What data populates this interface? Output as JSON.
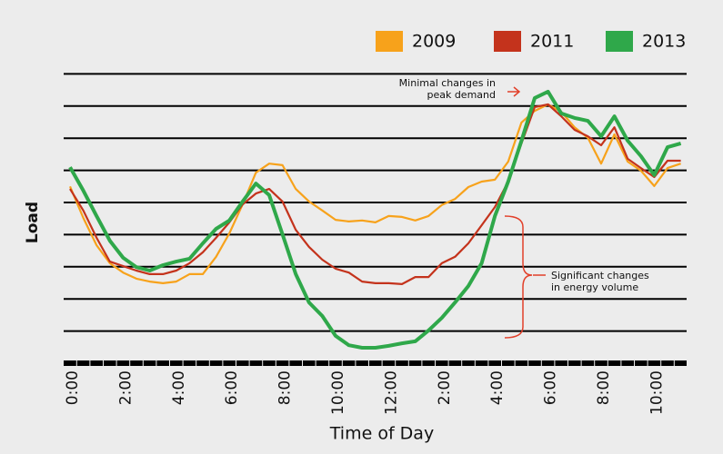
{
  "chart_data": {
    "type": "line",
    "x_label": "Time of Day",
    "y_label": "Load",
    "categories": [
      "0:00",
      null,
      null,
      null,
      "2:00",
      null,
      null,
      null,
      "4:00",
      null,
      null,
      null,
      "6:00",
      null,
      null,
      null,
      "8:00",
      null,
      null,
      null,
      "10:00",
      null,
      null,
      null,
      "12:00",
      null,
      null,
      null,
      "2:00",
      null,
      null,
      null,
      "4:00",
      null,
      null,
      null,
      "6:00",
      null,
      null,
      null,
      "8:00",
      null,
      null,
      null,
      "10:00",
      null,
      null
    ],
    "series": [
      {
        "name": "2009",
        "color": "#f7a21b",
        "width": 2.2,
        "values": [
          5.5,
          4.52,
          3.67,
          3.11,
          2.82,
          2.63,
          2.54,
          2.49,
          2.54,
          2.77,
          2.77,
          3.31,
          4.04,
          4.94,
          5.93,
          6.21,
          6.16,
          5.42,
          5.03,
          4.75,
          4.46,
          4.41,
          4.44,
          4.38,
          4.58,
          4.55,
          4.44,
          4.58,
          4.92,
          5.11,
          5.48,
          5.65,
          5.71,
          6.27,
          7.49,
          7.85,
          8.05,
          7.82,
          7.34,
          7.01,
          6.21,
          7.12,
          6.27,
          5.99,
          5.51,
          6.07,
          6.21
        ]
      },
      {
        "name": "2011",
        "color": "#c4331c",
        "width": 2.2,
        "values": [
          5.42,
          4.75,
          3.9,
          3.16,
          3.02,
          2.88,
          2.77,
          2.77,
          2.88,
          3.11,
          3.45,
          3.9,
          4.38,
          4.94,
          5.28,
          5.42,
          5.03,
          4.15,
          3.62,
          3.22,
          2.94,
          2.82,
          2.54,
          2.49,
          2.49,
          2.46,
          2.68,
          2.68,
          3.11,
          3.31,
          3.73,
          4.29,
          4.86,
          5.65,
          6.84,
          7.97,
          8.05,
          7.68,
          7.26,
          7.06,
          6.78,
          7.34,
          6.36,
          6.07,
          5.79,
          6.3,
          6.3
        ]
      },
      {
        "name": "2013",
        "color": "#2fa84a",
        "width": 4,
        "values": [
          6.1,
          5.37,
          4.58,
          3.81,
          3.28,
          2.99,
          2.88,
          3.05,
          3.16,
          3.25,
          3.73,
          4.18,
          4.44,
          5.03,
          5.59,
          5.23,
          4.01,
          2.77,
          1.89,
          1.47,
          0.85,
          0.56,
          0.48,
          0.48,
          0.54,
          0.62,
          0.68,
          1.02,
          1.41,
          1.89,
          2.4,
          3.11,
          4.58,
          5.65,
          6.92,
          8.25,
          8.45,
          7.77,
          7.63,
          7.54,
          7.06,
          7.68,
          6.92,
          6.44,
          5.85,
          6.72,
          6.84
        ]
      }
    ],
    "ylim": [
      0,
      10
    ],
    "yticks": [
      1,
      2,
      3,
      4,
      5,
      6,
      7,
      8,
      9
    ],
    "grid": true,
    "annotations": [
      {
        "lines": [
          "Minimal changes in",
          "peak demand"
        ]
      },
      {
        "lines": [
          "Significant changes",
          "in energy volume"
        ]
      }
    ]
  }
}
